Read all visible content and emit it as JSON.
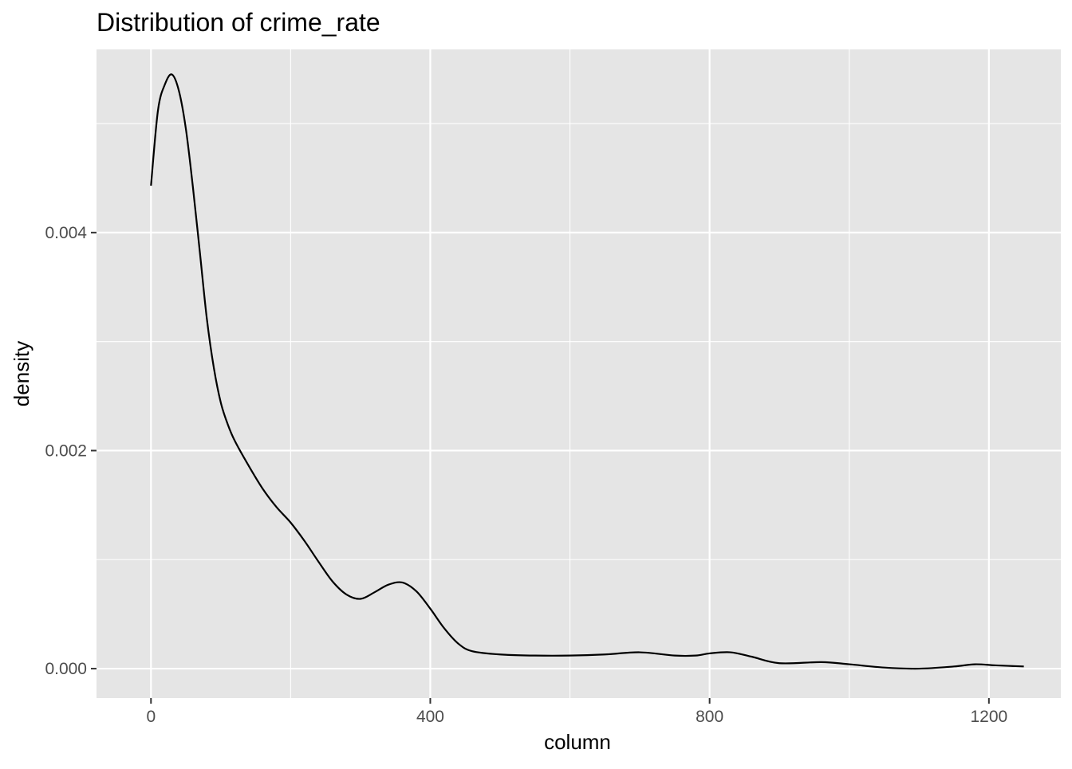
{
  "chart_data": {
    "type": "line",
    "title": "Distribution of crime_rate",
    "xlabel": "column",
    "ylabel": "density",
    "xlim": [
      -78,
      1303
    ],
    "ylim": [
      -0.00027,
      0.00568
    ],
    "x_ticks": [
      0,
      400,
      800,
      1200
    ],
    "x_tick_labels": [
      "0",
      "400",
      "800",
      "1200"
    ],
    "y_ticks": [
      0,
      0.002,
      0.004
    ],
    "y_tick_labels": [
      "0.000",
      "0.002",
      "0.004"
    ],
    "x_minor": [
      200,
      600,
      1000
    ],
    "y_minor": [
      0.001,
      0.003,
      0.005
    ],
    "grid": true,
    "legend": "none",
    "colors": {
      "panel": "#e5e5e5",
      "grid": "#ffffff",
      "line": "#000000",
      "tick_text": "#4d4d4d",
      "tick_mark": "#333333"
    },
    "series": [
      {
        "x": [
          0,
          10,
          20,
          30,
          40,
          50,
          60,
          70,
          80,
          90,
          100,
          110,
          120,
          140,
          160,
          180,
          200,
          220,
          240,
          260,
          280,
          300,
          320,
          340,
          360,
          380,
          400,
          420,
          440,
          460,
          500,
          550,
          600,
          650,
          700,
          750,
          780,
          800,
          830,
          860,
          900,
          960,
          1000,
          1050,
          1100,
          1150,
          1180,
          1210,
          1250
        ],
        "y": [
          0.00443,
          0.00512,
          0.00536,
          0.00545,
          0.0053,
          0.00495,
          0.00442,
          0.00382,
          0.00321,
          0.00276,
          0.00244,
          0.00224,
          0.00209,
          0.00186,
          0.00165,
          0.00148,
          0.00134,
          0.00117,
          0.00098,
          0.0008,
          0.00068,
          0.00064,
          0.0007,
          0.00077,
          0.00079,
          0.00071,
          0.00055,
          0.00037,
          0.00023,
          0.00016,
          0.00013,
          0.00012,
          0.00012,
          0.00013,
          0.00015,
          0.00012,
          0.00012,
          0.00014,
          0.00015,
          0.00011,
          5e-05,
          6e-05,
          4e-05,
          1e-05,
          0.0,
          2e-05,
          4e-05,
          3e-05,
          2e-05
        ]
      }
    ]
  }
}
